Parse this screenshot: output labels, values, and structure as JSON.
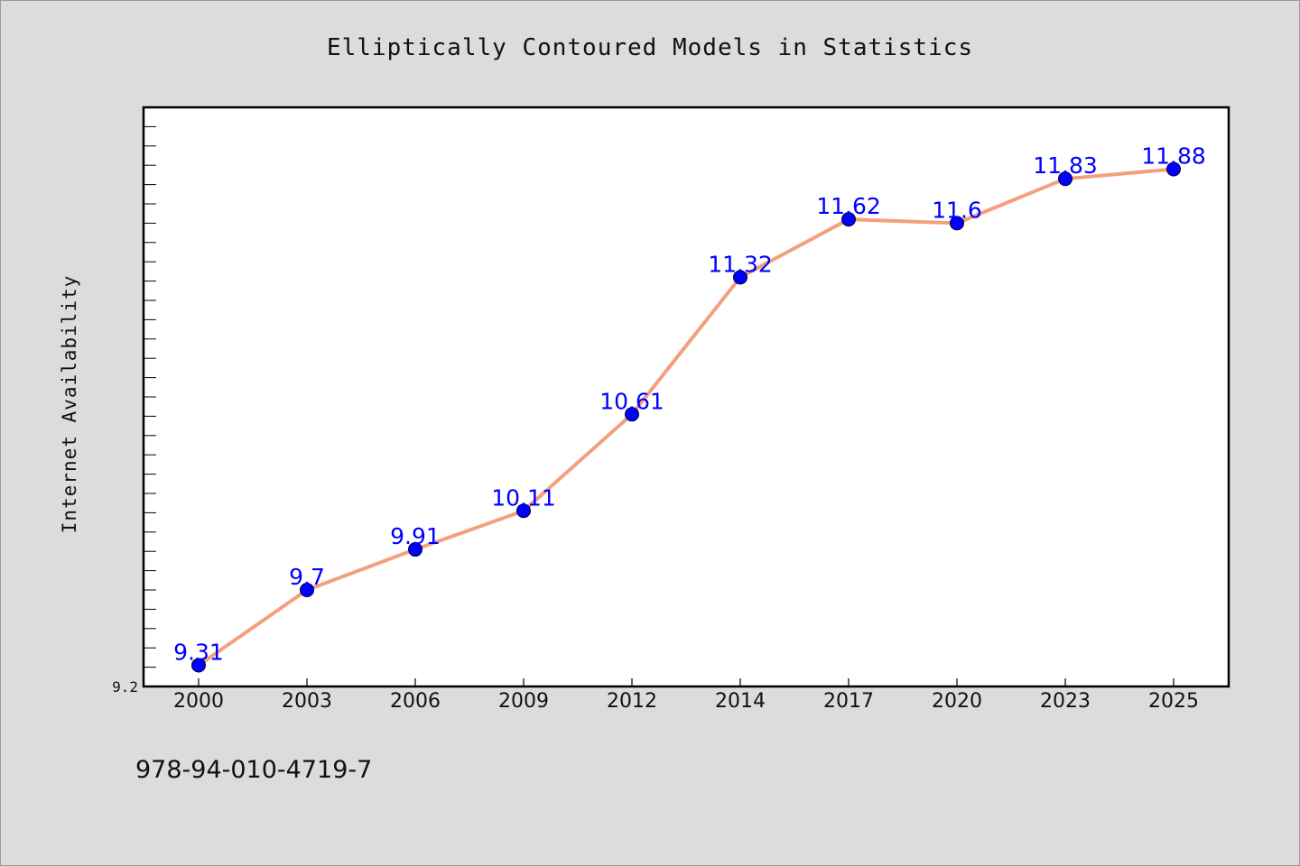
{
  "chart_data": {
    "type": "line",
    "title": "Elliptically Contoured Models in Statistics",
    "ylabel": "Internet Availability",
    "xlabel": "",
    "categories": [
      "2000",
      "2003",
      "2006",
      "2009",
      "2012",
      "2014",
      "2017",
      "2020",
      "2023",
      "2025"
    ],
    "values": [
      9.31,
      9.7,
      9.91,
      10.11,
      10.61,
      11.32,
      11.62,
      11.6,
      11.83,
      11.88
    ],
    "data_labels": [
      "9.31",
      "9.7",
      "9.91",
      "10.11",
      "10.61",
      "11.32",
      "11.62",
      "11.6",
      "11.83",
      "11.88"
    ],
    "ylim": [
      9.2,
      12.2
    ],
    "ytick_labels": [
      "9.2"
    ],
    "grid": false,
    "line_color": "#f4a07e",
    "marker_color": "#0000ff",
    "label_color": "#0000ff"
  },
  "footer": {
    "code": "978-94-010-4719-7"
  }
}
